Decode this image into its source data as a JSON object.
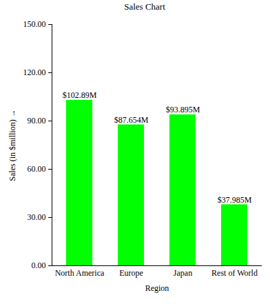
{
  "chart_data": {
    "type": "bar",
    "title": "Sales Chart",
    "x_label": "Region",
    "y_label": "Sales (in $million)",
    "categories": [
      "North America",
      "Europe",
      "Japan",
      "Rest of World"
    ],
    "values": [
      102.89,
      87.654,
      93.895,
      37.985
    ],
    "value_labels": [
      "$102.89M",
      "$87.654M",
      "$93.895M",
      "$37.985M"
    ],
    "data_labels": true,
    "color": "#00ff00",
    "ylim": [
      0,
      150
    ],
    "yticks": [
      {
        "value": 0,
        "label": "0.00"
      },
      {
        "value": 30,
        "label": "30.00"
      },
      {
        "value": 60,
        "label": "60.00"
      },
      {
        "value": 90,
        "label": "90.00"
      },
      {
        "value": 120,
        "label": "120.00"
      },
      {
        "value": 150,
        "label": "150.00"
      }
    ],
    "grid": false
  }
}
